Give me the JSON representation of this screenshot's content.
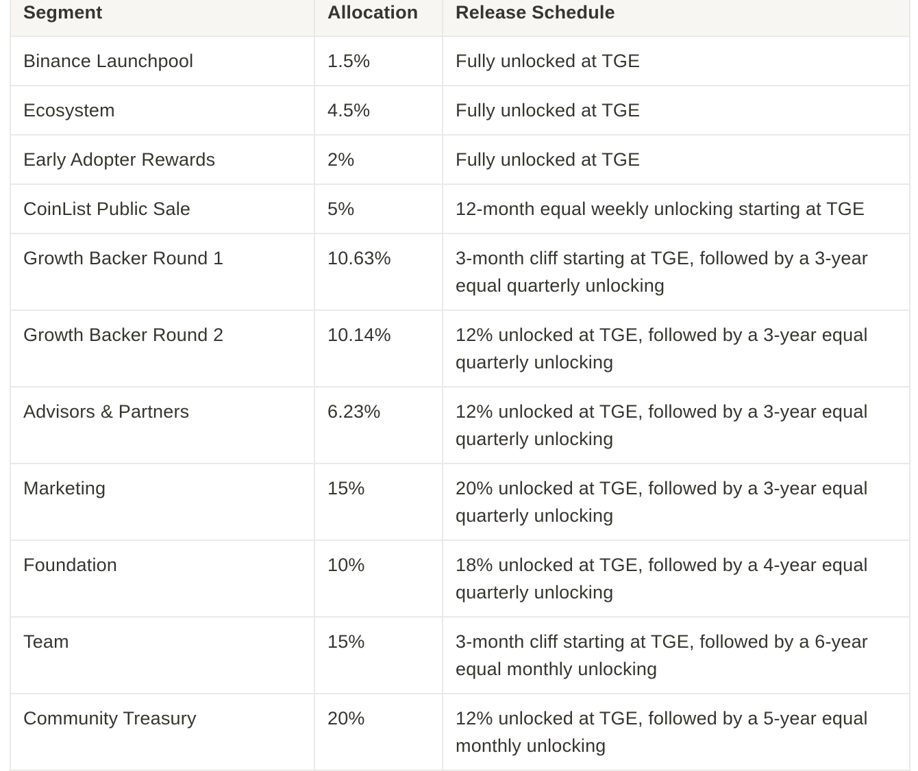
{
  "table": {
    "headers": [
      "Segment",
      "Allocation",
      "Release Schedule"
    ],
    "rows": [
      {
        "segment": "Binance Launchpool",
        "allocation": "1.5%",
        "schedule": "Fully unlocked at TGE"
      },
      {
        "segment": "Ecosystem",
        "allocation": "4.5%",
        "schedule": "Fully unlocked at TGE"
      },
      {
        "segment": "Early Adopter Rewards",
        "allocation": "2%",
        "schedule": "Fully unlocked at TGE"
      },
      {
        "segment": "CoinList Public Sale",
        "allocation": "5%",
        "schedule": "12-month equal weekly unlocking starting at TGE"
      },
      {
        "segment": "Growth Backer Round 1",
        "allocation": "10.63%",
        "schedule": "3-month cliff starting at TGE, followed by a 3-year equal quarterly unlocking"
      },
      {
        "segment": "Growth Backer Round 2",
        "allocation": "10.14%",
        "schedule": "12% unlocked at TGE, followed by a 3-year equal quarterly unlocking"
      },
      {
        "segment": "Advisors & Partners",
        "allocation": "6.23%",
        "schedule": "12% unlocked at TGE, followed by a 3-year equal quarterly unlocking"
      },
      {
        "segment": "Marketing",
        "allocation": "15%",
        "schedule": "20% unlocked at TGE, followed by a 3-year equal quarterly unlocking"
      },
      {
        "segment": "Foundation",
        "allocation": "10%",
        "schedule": "18% unlocked at TGE, followed by a 4-year equal quarterly unlocking"
      },
      {
        "segment": "Team",
        "allocation": "15%",
        "schedule": "3-month cliff starting at TGE, followed by a 6-year equal monthly unlocking"
      },
      {
        "segment": "Community Treasury",
        "allocation": "20%",
        "schedule": "12% unlocked at TGE, followed by a 5-year equal monthly unlocking"
      }
    ]
  },
  "colors": {
    "border": "#e9e9e7",
    "header_background": "#f7f6f3",
    "text": "#37352f"
  }
}
